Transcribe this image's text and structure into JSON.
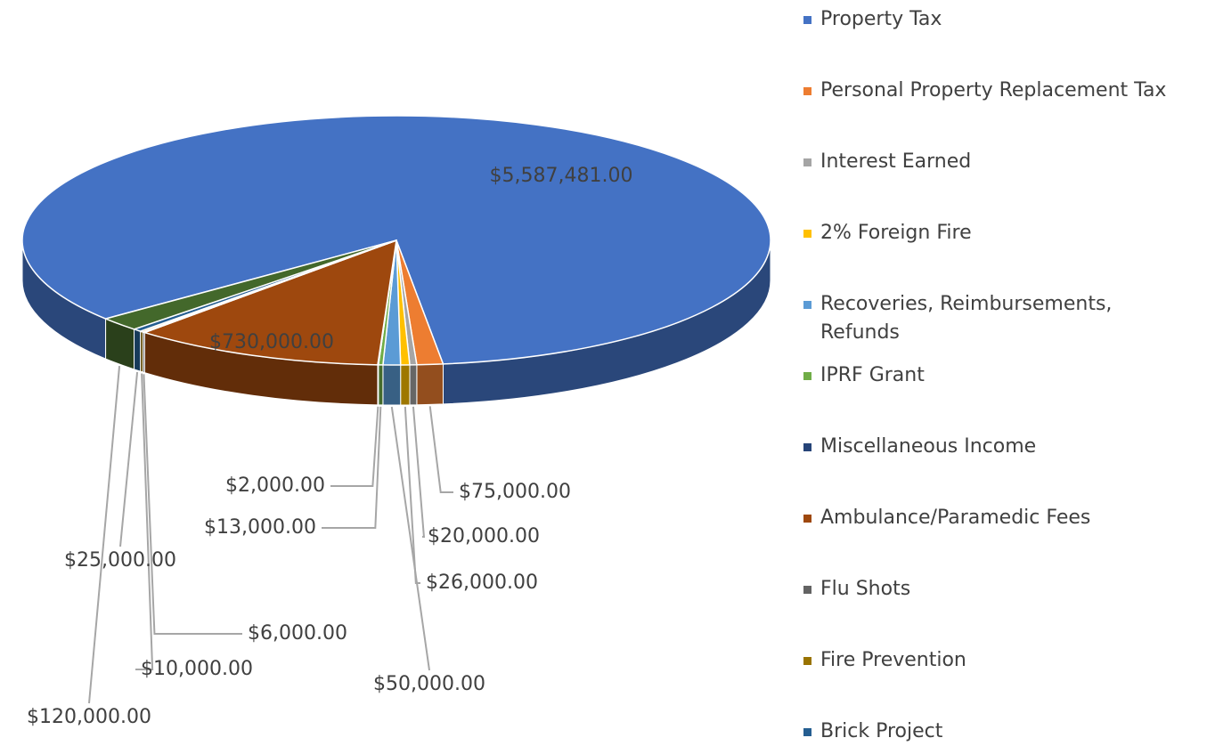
{
  "chart_data": {
    "type": "pie",
    "categories": [
      "Property Tax",
      "Personal Property Replacement Tax",
      "Interest Earned",
      "2% Foreign Fire",
      "Recoveries, Reimbursements, Refunds",
      "IPRF Grant",
      "Miscellaneous Income",
      "Ambulance/Paramedic Fees",
      "Flu Shots",
      "Fire Prevention",
      "Brick Project",
      null
    ],
    "values": [
      5587481,
      75000,
      20000,
      26000,
      50000,
      13000,
      2000,
      730000,
      6000,
      10000,
      25000,
      120000
    ],
    "value_labels": [
      "$5,587,481.00",
      "$75,000.00",
      "$20,000.00",
      "$26,000.00",
      "$50,000.00",
      "$13,000.00",
      "$2,000.00",
      "$730,000.00",
      "$6,000.00",
      "$10,000.00",
      "$25,000.00",
      "$120,000.00"
    ],
    "colors": [
      "#4472c4",
      "#ed7d31",
      "#a5a5a5",
      "#ffc000",
      "#5b9bd5",
      "#70ad47",
      "#264478",
      "#9e480e",
      "#636363",
      "#997300",
      "#255e91",
      "#43682b"
    ],
    "legend": "right"
  }
}
